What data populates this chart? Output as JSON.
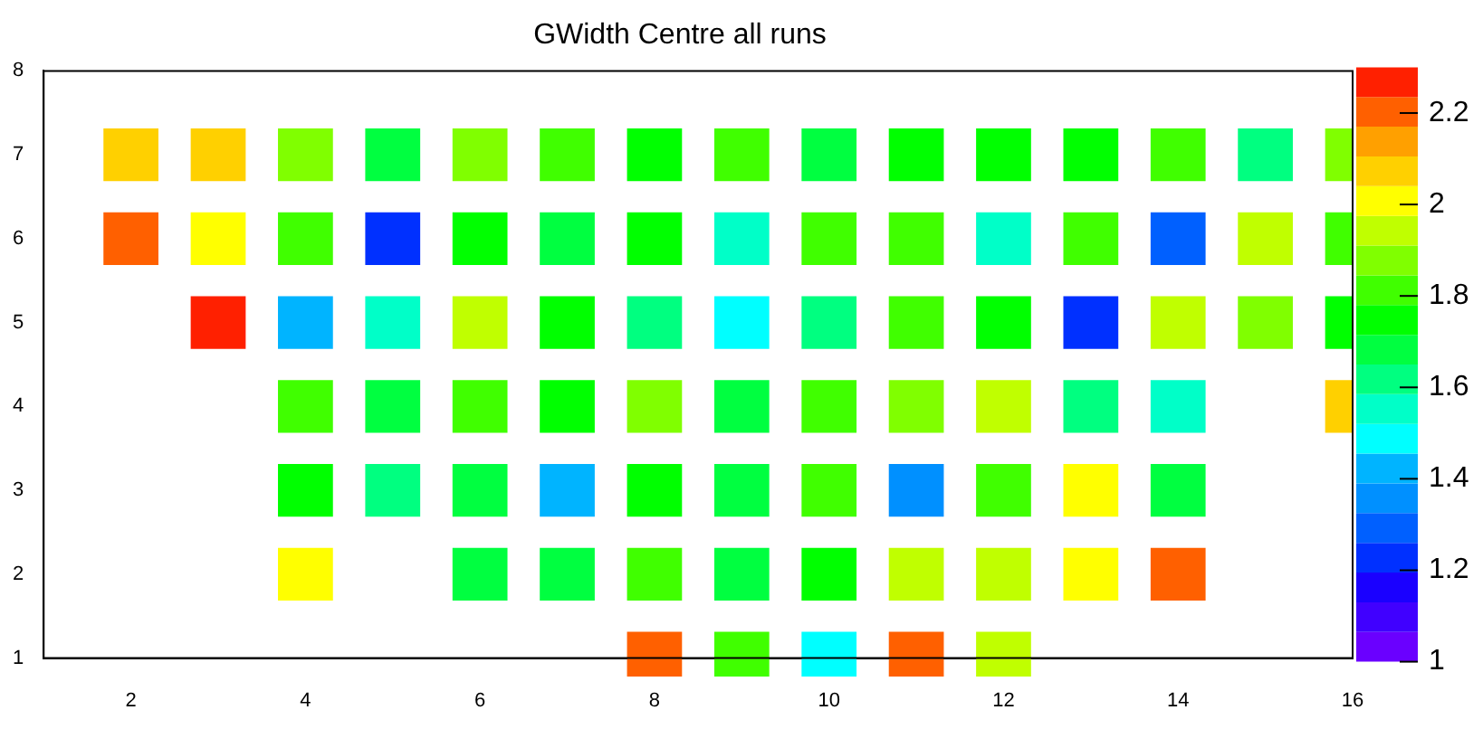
{
  "chart_data": {
    "type": "heatmap",
    "title": "GWidth Centre all runs",
    "categories": [
      null,
      "2",
      null,
      "4",
      null,
      "6",
      null,
      "8",
      null,
      "10",
      null,
      "12",
      null,
      "14",
      null,
      "16"
    ],
    "y_categories": [
      "8",
      "7",
      "6",
      "5",
      "4",
      "3",
      "2",
      "1"
    ],
    "cells": [
      [
        null,
        null,
        null,
        null,
        null,
        null,
        null,
        null,
        null,
        null,
        null,
        null,
        null,
        null,
        null,
        null
      ],
      [
        null,
        2.07,
        2.07,
        1.88,
        1.68,
        1.88,
        1.81,
        1.72,
        1.78,
        1.68,
        1.75,
        1.72,
        1.75,
        1.81,
        1.6,
        1.88
      ],
      [
        null,
        2.2,
        2.0,
        1.78,
        1.22,
        1.72,
        1.68,
        1.72,
        1.55,
        1.78,
        1.78,
        1.55,
        1.78,
        1.28,
        1.95,
        1.84
      ],
      [
        null,
        null,
        2.27,
        1.4,
        1.55,
        1.95,
        1.72,
        1.62,
        1.49,
        1.62,
        1.84,
        1.72,
        1.22,
        1.92,
        1.88,
        1.72
      ],
      [
        null,
        null,
        null,
        1.84,
        1.65,
        1.84,
        1.75,
        1.88,
        1.65,
        1.81,
        1.9,
        1.92,
        1.62,
        1.52,
        null,
        2.07
      ],
      [
        null,
        null,
        null,
        1.72,
        1.6,
        1.7,
        1.43,
        1.72,
        1.68,
        1.78,
        1.33,
        1.84,
        1.98,
        1.65,
        null,
        null
      ],
      [
        null,
        null,
        null,
        1.98,
        null,
        1.65,
        1.65,
        1.84,
        1.65,
        1.75,
        1.95,
        1.92,
        1.98,
        2.2,
        null,
        null
      ],
      [
        null,
        null,
        null,
        null,
        null,
        null,
        null,
        2.2,
        1.8,
        1.49,
        2.18,
        1.95,
        null,
        null,
        null,
        null
      ]
    ],
    "clim": [
      1,
      2.3
    ],
    "cticks": [
      1,
      1.2,
      1.4,
      1.6,
      1.8,
      2,
      2.2
    ]
  }
}
